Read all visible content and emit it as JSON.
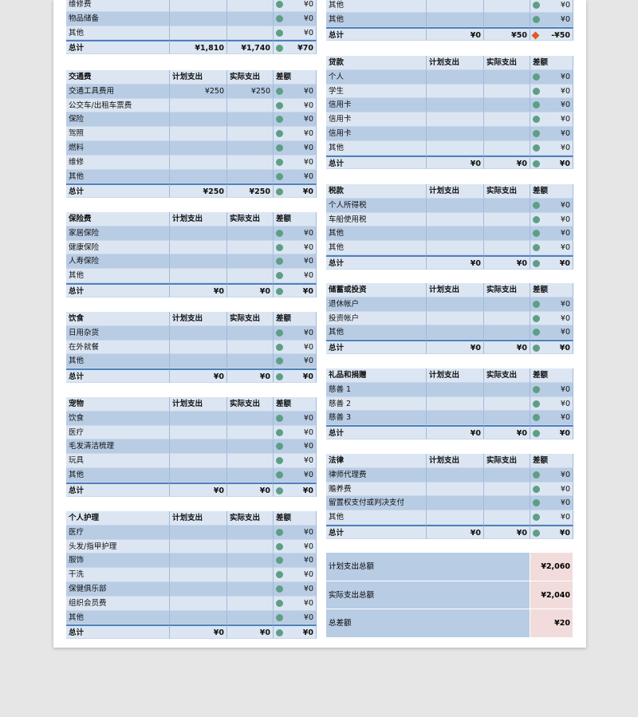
{
  "left": [
    {
      "rows": [
        {
          "label": "维修费",
          "diff": "¥0"
        },
        {
          "label": "物品储备",
          "diff": "¥0"
        },
        {
          "label": "其他",
          "diff": "¥0"
        }
      ],
      "total": {
        "label": "总计",
        "plan": "¥1,810",
        "actual": "¥1,740",
        "diff": "¥70"
      }
    },
    {
      "header": [
        "交通费",
        "计划支出",
        "实际支出",
        "差额"
      ],
      "rows": [
        {
          "label": "交通工具费用",
          "plan": "¥250",
          "actual": "¥250",
          "diff": "¥0"
        },
        {
          "label": "公交车/出租车票费",
          "diff": "¥0"
        },
        {
          "label": "保险",
          "diff": "¥0"
        },
        {
          "label": "驾照",
          "diff": "¥0"
        },
        {
          "label": "燃料",
          "diff": "¥0"
        },
        {
          "label": "维修",
          "diff": "¥0"
        },
        {
          "label": "其他",
          "diff": "¥0"
        }
      ],
      "total": {
        "label": "总计",
        "plan": "¥250",
        "actual": "¥250",
        "diff": "¥0"
      }
    },
    {
      "header": [
        "保险费",
        "计划支出",
        "实际支出",
        "差额"
      ],
      "rows": [
        {
          "label": "家居保险",
          "diff": "¥0"
        },
        {
          "label": "健康保险",
          "diff": "¥0"
        },
        {
          "label": "人寿保险",
          "diff": "¥0"
        },
        {
          "label": "其他",
          "diff": "¥0"
        }
      ],
      "total": {
        "label": "总计",
        "plan": "¥0",
        "actual": "¥0",
        "diff": "¥0"
      }
    },
    {
      "header": [
        "饮食",
        "计划支出",
        "实际支出",
        "差额"
      ],
      "rows": [
        {
          "label": "日用杂货",
          "diff": "¥0"
        },
        {
          "label": "在外就餐",
          "diff": "¥0"
        },
        {
          "label": "其他",
          "diff": "¥0"
        }
      ],
      "total": {
        "label": "总计",
        "plan": "¥0",
        "actual": "¥0",
        "diff": "¥0"
      }
    },
    {
      "header": [
        "宠物",
        "计划支出",
        "实际支出",
        "差额"
      ],
      "rows": [
        {
          "label": "饮食",
          "diff": "¥0"
        },
        {
          "label": "医疗",
          "diff": "¥0"
        },
        {
          "label": "毛发清洁梳理",
          "diff": "¥0"
        },
        {
          "label": "玩具",
          "diff": "¥0"
        },
        {
          "label": "其他",
          "diff": "¥0"
        }
      ],
      "total": {
        "label": "总计",
        "plan": "¥0",
        "actual": "¥0",
        "diff": "¥0"
      }
    },
    {
      "header": [
        "个人护理",
        "计划支出",
        "实际支出",
        "差额"
      ],
      "rows": [
        {
          "label": "医疗",
          "diff": "¥0"
        },
        {
          "label": "头发/指甲护理",
          "diff": "¥0"
        },
        {
          "label": "服饰",
          "diff": "¥0"
        },
        {
          "label": "干洗",
          "diff": "¥0"
        },
        {
          "label": "保健俱乐部",
          "diff": "¥0"
        },
        {
          "label": "组织会员费",
          "diff": "¥0"
        },
        {
          "label": "其他",
          "diff": "¥0"
        }
      ],
      "total": {
        "label": "总计",
        "plan": "¥0",
        "actual": "¥0",
        "diff": "¥0"
      }
    }
  ],
  "right": [
    {
      "rows": [
        {
          "label": "其他",
          "diff": "¥0"
        },
        {
          "label": "其他",
          "diff": "¥0"
        }
      ],
      "total": {
        "label": "总计",
        "plan": "¥0",
        "actual": "¥50",
        "diff": "-¥50",
        "marker": "diamond"
      }
    },
    {
      "header": [
        "贷款",
        "计划支出",
        "实际支出",
        "差额"
      ],
      "rows": [
        {
          "label": "个人",
          "diff": "¥0"
        },
        {
          "label": "学生",
          "diff": "¥0"
        },
        {
          "label": "信用卡",
          "diff": "¥0"
        },
        {
          "label": "信用卡",
          "diff": "¥0"
        },
        {
          "label": "信用卡",
          "diff": "¥0"
        },
        {
          "label": "其他",
          "diff": "¥0"
        }
      ],
      "total": {
        "label": "总计",
        "plan": "¥0",
        "actual": "¥0",
        "diff": "¥0"
      }
    },
    {
      "header": [
        "税款",
        "计划支出",
        "实际支出",
        "差额"
      ],
      "rows": [
        {
          "label": "个人所得税",
          "diff": "¥0"
        },
        {
          "label": "车船使用税",
          "diff": "¥0"
        },
        {
          "label": "其他",
          "diff": "¥0"
        },
        {
          "label": "其他",
          "diff": "¥0"
        }
      ],
      "total": {
        "label": "总计",
        "plan": "¥0",
        "actual": "¥0",
        "diff": "¥0"
      }
    },
    {
      "header": [
        "储蓄或投资",
        "计划支出",
        "实际支出",
        "差额"
      ],
      "rows": [
        {
          "label": "退休帐户",
          "diff": "¥0"
        },
        {
          "label": "投资帐户",
          "diff": "¥0"
        },
        {
          "label": "其他",
          "diff": "¥0"
        }
      ],
      "total": {
        "label": "总计",
        "plan": "¥0",
        "actual": "¥0",
        "diff": "¥0"
      }
    },
    {
      "header": [
        "礼品和捐赠",
        "计划支出",
        "实际支出",
        "差额"
      ],
      "rows": [
        {
          "label": "慈善 1",
          "diff": "¥0"
        },
        {
          "label": "慈善 2",
          "diff": "¥0"
        },
        {
          "label": "慈善 3",
          "diff": "¥0"
        }
      ],
      "total": {
        "label": "总计",
        "plan": "¥0",
        "actual": "¥0",
        "diff": "¥0"
      }
    },
    {
      "header": [
        "法律",
        "计划支出",
        "实际支出",
        "差额"
      ],
      "rows": [
        {
          "label": "律师代理费",
          "diff": "¥0"
        },
        {
          "label": "赡养费",
          "diff": "¥0"
        },
        {
          "label": "留置权支付或判决支付",
          "diff": "¥0"
        },
        {
          "label": "其他",
          "diff": "¥0"
        }
      ],
      "total": {
        "label": "总计",
        "plan": "¥0",
        "actual": "¥0",
        "diff": "¥0"
      }
    }
  ],
  "summary": [
    {
      "label": "计划支出总额",
      "value": "¥2,060"
    },
    {
      "label": "实际支出总额",
      "value": "¥2,040"
    },
    {
      "label": "总差额",
      "value": "¥20"
    }
  ]
}
